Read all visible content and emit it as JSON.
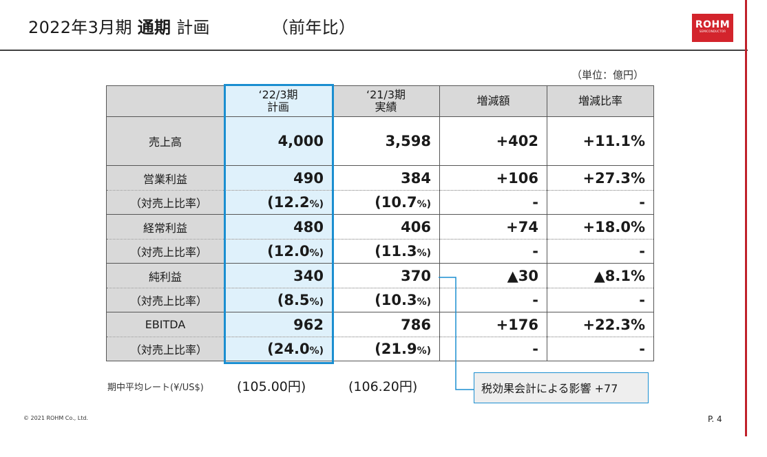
{
  "title": {
    "main": "2022年3月期",
    "bold": "通期",
    "rest": "計画",
    "paren": "（前年比）"
  },
  "logo": {
    "name": "ROHM",
    "sub": "SEMICONDUCTOR"
  },
  "unit": "（単位：億円）",
  "table": {
    "headers": {
      "col1_line1": "‘22/3期",
      "col1_line2": "計画",
      "col2_line1": "‘21/3期",
      "col2_line2": "実績",
      "col3": "増減額",
      "col4": "増減比率"
    },
    "rows": {
      "sales": {
        "label": "売上高",
        "plan": "4,000",
        "actual": "3,598",
        "diff": "+402",
        "rate": "+11.1%"
      },
      "op": {
        "label": "営業利益",
        "plan": "490",
        "actual": "384",
        "diff": "+106",
        "rate": "+27.3%"
      },
      "op_ratio": {
        "label": "（対売上比率）",
        "plan": "(12.2",
        "actual": "(10.7",
        "diff": "-",
        "rate": "-"
      },
      "ord": {
        "label": "経常利益",
        "plan": "480",
        "actual": "406",
        "diff": "+74",
        "rate": "+18.0%"
      },
      "ord_ratio": {
        "label": "（対売上比率）",
        "plan": "(12.0",
        "actual": "(11.3",
        "diff": "-",
        "rate": "-"
      },
      "net": {
        "label": "純利益",
        "plan": "340",
        "actual": "370",
        "diff": "▲30",
        "rate": "▲8.1%"
      },
      "net_ratio": {
        "label": "（対売上比率）",
        "plan": "(8.5",
        "actual": "(10.3",
        "diff": "-",
        "rate": "-"
      },
      "ebitda": {
        "label": "EBITDA",
        "plan": "962",
        "actual": "786",
        "diff": "+176",
        "rate": "+22.3%"
      },
      "ebitda_ratio": {
        "label": "（対売上比率）",
        "plan": "(24.0",
        "actual": "(21.9",
        "diff": "-",
        "rate": "-"
      }
    },
    "pct_suffix": "%)"
  },
  "rate": {
    "label": "期中平均レート(¥/US$)",
    "plan": "(105.00円)",
    "actual": "(106.20円)"
  },
  "callout": "税効果会計による影響 +77",
  "copyright": "© 2021 ROHM Co., Ltd.",
  "page": "P. 4",
  "colors": {
    "accent_blue": "#1a8ed0",
    "rohm_red": "#d3242c",
    "plan_fill": "#dff1fb",
    "header_gray": "#d9d9d9"
  }
}
